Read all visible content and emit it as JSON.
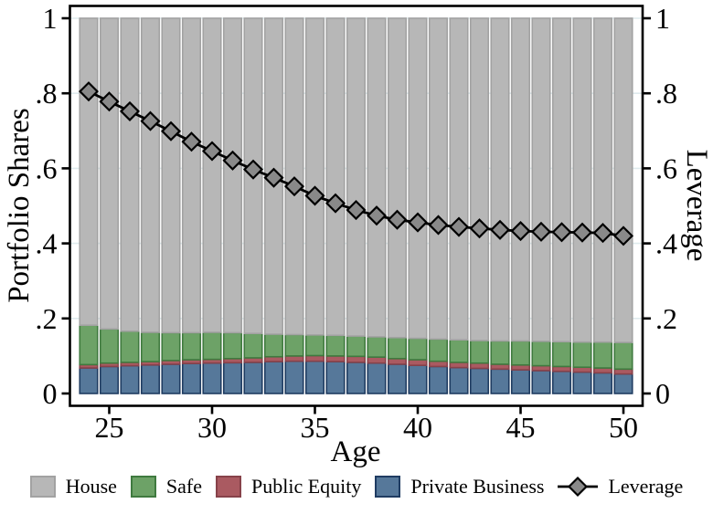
{
  "figure": {
    "left_axis_title": "Portfolio Shares",
    "right_axis_title": "Leverage",
    "x_axis_title": "Age",
    "background": "#ffffff",
    "frame_color": "#000000",
    "grid_color": "#dfebee"
  },
  "chart_data": {
    "type": "bar",
    "subtype": "stacked-bars-with-line-overlay",
    "title": "",
    "xlabel": "Age",
    "ylabel_left": "Portfolio Shares",
    "ylabel_right": "Leverage",
    "x": [
      24,
      25,
      26,
      27,
      28,
      29,
      30,
      31,
      32,
      33,
      34,
      35,
      36,
      37,
      38,
      39,
      40,
      41,
      42,
      43,
      44,
      45,
      46,
      47,
      48,
      49,
      50
    ],
    "x_tick_values": [
      25,
      30,
      35,
      40,
      45,
      50
    ],
    "x_tick_labels": [
      "25",
      "30",
      "35",
      "40",
      "45",
      "50"
    ],
    "y_tick_values": [
      0,
      0.2,
      0.4,
      0.6,
      0.8,
      1
    ],
    "y_tick_labels": [
      "0",
      ".2",
      ".4",
      ".6",
      ".8",
      "1"
    ],
    "ylim": [
      0,
      1
    ],
    "grid": "horizontal-light",
    "legend_position": "bottom",
    "series": [
      {
        "name": "Private Business",
        "stack_order": 1,
        "fill": "#56789a",
        "border": "#1f3c62",
        "values": [
          0.068,
          0.072,
          0.074,
          0.076,
          0.078,
          0.08,
          0.081,
          0.082,
          0.083,
          0.085,
          0.086,
          0.086,
          0.085,
          0.083,
          0.081,
          0.078,
          0.075,
          0.072,
          0.069,
          0.067,
          0.065,
          0.063,
          0.061,
          0.059,
          0.057,
          0.055,
          0.052
        ]
      },
      {
        "name": "Public Equity",
        "stack_order": 2,
        "fill": "#aa5a61",
        "border": "#87424a",
        "values": [
          0.009,
          0.009,
          0.009,
          0.009,
          0.01,
          0.01,
          0.01,
          0.011,
          0.012,
          0.013,
          0.014,
          0.015,
          0.015,
          0.016,
          0.016,
          0.015,
          0.015,
          0.014,
          0.014,
          0.014,
          0.013,
          0.013,
          0.013,
          0.013,
          0.013,
          0.013,
          0.013
        ]
      },
      {
        "name": "Safe",
        "stack_order": 3,
        "fill": "#6da267",
        "border": "#3f7a3f",
        "values": [
          0.105,
          0.091,
          0.083,
          0.078,
          0.074,
          0.072,
          0.072,
          0.069,
          0.065,
          0.06,
          0.057,
          0.055,
          0.055,
          0.054,
          0.054,
          0.056,
          0.057,
          0.059,
          0.06,
          0.06,
          0.062,
          0.064,
          0.065,
          0.066,
          0.067,
          0.069,
          0.071
        ]
      },
      {
        "name": "House",
        "stack_order": 4,
        "fill": "#b7b7b7",
        "border": "#a2a2a2",
        "values": [
          0.818,
          0.828,
          0.834,
          0.837,
          0.838,
          0.838,
          0.837,
          0.838,
          0.84,
          0.842,
          0.843,
          0.844,
          0.845,
          0.847,
          0.849,
          0.851,
          0.853,
          0.855,
          0.857,
          0.859,
          0.86,
          0.86,
          0.861,
          0.862,
          0.863,
          0.863,
          0.864
        ]
      }
    ],
    "line_series": {
      "name": "Leverage",
      "line_color": "#000000",
      "marker": "diamond",
      "marker_fill": "#898989",
      "marker_border": "#000000",
      "values": [
        0.805,
        0.778,
        0.752,
        0.726,
        0.699,
        0.671,
        0.646,
        0.621,
        0.597,
        0.575,
        0.552,
        0.527,
        0.507,
        0.489,
        0.474,
        0.463,
        0.456,
        0.449,
        0.444,
        0.44,
        0.436,
        0.433,
        0.431,
        0.43,
        0.429,
        0.428,
        0.42
      ]
    }
  },
  "legend": {
    "items": [
      {
        "label": "House",
        "swatch": "square",
        "fill": "#b7b7b7",
        "border": "#a2a2a2"
      },
      {
        "label": "Safe",
        "swatch": "square",
        "fill": "#6da267",
        "border": "#3f7a3f"
      },
      {
        "label": "Public Equity",
        "swatch": "square",
        "fill": "#aa5a61",
        "border": "#87424a"
      },
      {
        "label": "Private Business",
        "swatch": "square",
        "fill": "#56789a",
        "border": "#1f3c62"
      },
      {
        "label": "Leverage",
        "swatch": "diamond-line",
        "fill": "#898989",
        "border": "#000000"
      }
    ]
  }
}
